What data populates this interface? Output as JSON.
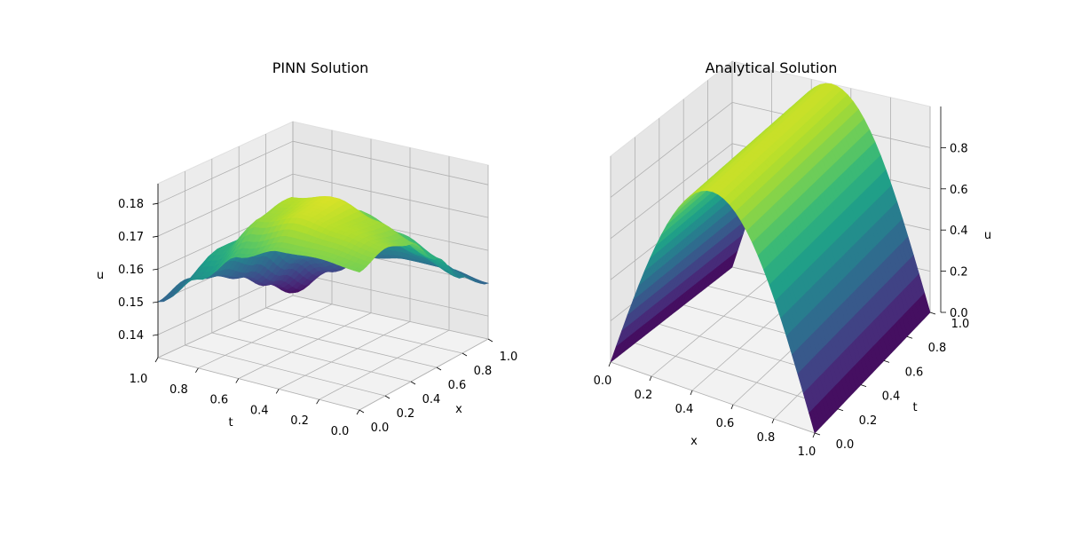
{
  "chart_data": [
    {
      "type": "surface",
      "title": "PINN Solution",
      "xlabel": "x",
      "ylabel": "t",
      "zlabel": "u",
      "x_ticks": [
        "0.0",
        "0.2",
        "0.4",
        "0.6",
        "0.8",
        "1.0"
      ],
      "t_ticks": [
        "0.0",
        "0.2",
        "0.4",
        "0.6",
        "0.8",
        "1.0"
      ],
      "u_ticks": [
        "0.14",
        "0.15",
        "0.16",
        "0.17",
        "0.18"
      ],
      "xlim": [
        0,
        1
      ],
      "tlim": [
        0,
        1
      ],
      "ulim": [
        0.133,
        0.186
      ],
      "colormap": "viridis",
      "grid": true,
      "surface": {
        "x": [
          0,
          0.2,
          0.4,
          0.6,
          0.8,
          1.0
        ],
        "t": [
          0,
          0.2,
          0.4,
          0.6,
          0.8,
          1.0
        ],
        "u": [
          [
            0.175,
            0.178,
            0.175,
            0.166,
            0.156,
            0.15
          ],
          [
            0.176,
            0.18,
            0.179,
            0.171,
            0.16,
            0.152
          ],
          [
            0.175,
            0.182,
            0.183,
            0.175,
            0.163,
            0.152
          ],
          [
            0.17,
            0.178,
            0.18,
            0.172,
            0.162,
            0.15
          ],
          [
            0.16,
            0.166,
            0.166,
            0.16,
            0.151,
            0.143
          ],
          [
            0.15,
            0.153,
            0.15,
            0.146,
            0.14,
            0.134
          ]
        ]
      }
    },
    {
      "type": "surface",
      "title": "Analytical Solution",
      "xlabel": "x",
      "ylabel": "t",
      "zlabel": "u",
      "x_ticks": [
        "0.0",
        "0.2",
        "0.4",
        "0.6",
        "0.8",
        "1.0"
      ],
      "t_ticks": [
        "0.0",
        "0.2",
        "0.4",
        "0.6",
        "0.8",
        "1.0"
      ],
      "u_ticks": [
        "0.0",
        "0.2",
        "0.4",
        "0.6",
        "0.8"
      ],
      "xlim": [
        0,
        1
      ],
      "tlim": [
        0,
        1
      ],
      "ulim": [
        0,
        1
      ],
      "colormap": "viridis",
      "grid": true,
      "function": "u(x,t) = sin(pi*x)"
    }
  ]
}
